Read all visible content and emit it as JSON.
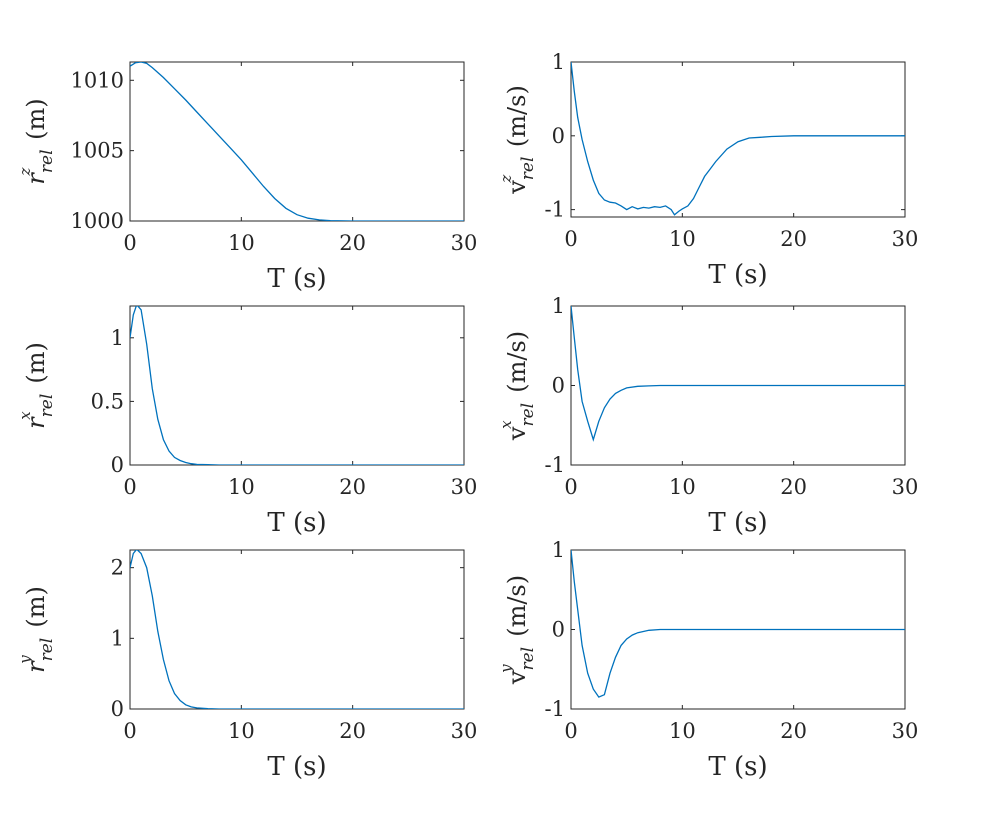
{
  "chart_data": [
    {
      "type": "line",
      "xlabel": "T (s)",
      "ylabel": {
        "symbol": "r",
        "superscript": "z",
        "subscript": "rel",
        "unit": "(m)"
      },
      "xlim": [
        0,
        30
      ],
      "ylim": [
        1000,
        1011.3
      ],
      "xticks": [
        0,
        10,
        20,
        30
      ],
      "yticks": [
        1000,
        1005,
        1010
      ],
      "ytick_labels": [
        "1000",
        "1005",
        "1010"
      ],
      "series": [
        {
          "color": "#0072BD",
          "x": [
            0,
            0.5,
            1,
            1.5,
            2,
            3,
            4,
            5,
            6,
            7,
            8,
            9,
            10,
            11,
            12,
            13,
            14,
            15,
            16,
            17,
            18,
            20,
            25,
            30
          ],
          "y": [
            1011.0,
            1011.25,
            1011.3,
            1011.2,
            1010.9,
            1010.2,
            1009.4,
            1008.6,
            1007.75,
            1006.9,
            1006.05,
            1005.2,
            1004.35,
            1003.4,
            1002.45,
            1001.6,
            1000.9,
            1000.45,
            1000.2,
            1000.08,
            1000.03,
            1000.0,
            1000.0,
            1000.0
          ]
        }
      ]
    },
    {
      "type": "line",
      "xlabel": "T (s)",
      "ylabel": {
        "symbol": "v",
        "superscript": "z",
        "subscript": "rel",
        "unit": "(m/s)"
      },
      "xlim": [
        0,
        30
      ],
      "ylim": [
        -1.1,
        1.0
      ],
      "xticks": [
        0,
        10,
        20,
        30
      ],
      "yticks": [
        -1,
        0,
        1
      ],
      "ytick_labels": [
        "-1",
        "0",
        "1"
      ],
      "series": [
        {
          "color": "#0072BD",
          "x": [
            0,
            0.3,
            0.6,
            1,
            1.5,
            2,
            2.5,
            3,
            3.5,
            4,
            4.5,
            5,
            5.5,
            6,
            6.5,
            7,
            7.5,
            8,
            8.5,
            9,
            9.3,
            9.7,
            10,
            10.5,
            11,
            11.5,
            12,
            12.5,
            13,
            14,
            15,
            16,
            17,
            18,
            20,
            22,
            25,
            28,
            30
          ],
          "y": [
            1.0,
            0.6,
            0.25,
            -0.05,
            -0.35,
            -0.6,
            -0.78,
            -0.87,
            -0.9,
            -0.91,
            -0.95,
            -1.0,
            -0.96,
            -0.99,
            -0.97,
            -0.98,
            -0.96,
            -0.97,
            -0.95,
            -1.0,
            -1.07,
            -1.02,
            -0.99,
            -0.95,
            -0.85,
            -0.7,
            -0.55,
            -0.45,
            -0.35,
            -0.18,
            -0.08,
            -0.03,
            -0.02,
            -0.01,
            0.0,
            0.0,
            0.0,
            0.0,
            0.0
          ]
        }
      ]
    },
    {
      "type": "line",
      "xlabel": "T (s)",
      "ylabel": {
        "symbol": "r",
        "superscript": "x",
        "subscript": "rel",
        "unit": "(m)"
      },
      "xlim": [
        0,
        30
      ],
      "ylim": [
        0,
        1.25
      ],
      "xticks": [
        0,
        10,
        20,
        30
      ],
      "yticks": [
        0,
        0.5,
        1
      ],
      "ytick_labels": [
        "0",
        "0.5",
        "1"
      ],
      "series": [
        {
          "color": "#0072BD",
          "x": [
            0,
            0.3,
            0.6,
            1,
            1.5,
            2,
            2.5,
            3,
            3.5,
            4,
            4.5,
            5,
            5.5,
            6,
            7,
            8,
            10,
            15,
            20,
            25,
            30
          ],
          "y": [
            1.0,
            1.18,
            1.26,
            1.22,
            0.95,
            0.6,
            0.36,
            0.2,
            0.11,
            0.06,
            0.035,
            0.02,
            0.01,
            0.005,
            0.002,
            0.0,
            0.0,
            0.0,
            0.0,
            0.0,
            0.0
          ]
        }
      ]
    },
    {
      "type": "line",
      "xlabel": "T (s)",
      "ylabel": {
        "symbol": "v",
        "superscript": "x",
        "subscript": "rel",
        "unit": "(m/s)"
      },
      "xlim": [
        0,
        30
      ],
      "ylim": [
        -1.0,
        1.0
      ],
      "xticks": [
        0,
        10,
        20,
        30
      ],
      "yticks": [
        -1,
        0,
        1
      ],
      "ytick_labels": [
        "-1",
        "0",
        "1"
      ],
      "series": [
        {
          "color": "#0072BD",
          "x": [
            0,
            0.3,
            0.6,
            1,
            1.5,
            2,
            2.5,
            3,
            3.5,
            4,
            4.5,
            5,
            6,
            7,
            8,
            10,
            15,
            20,
            25,
            30
          ],
          "y": [
            1.0,
            0.6,
            0.2,
            -0.2,
            -0.45,
            -0.68,
            -0.45,
            -0.28,
            -0.17,
            -0.1,
            -0.06,
            -0.03,
            -0.01,
            -0.005,
            0.0,
            0.0,
            0.0,
            0.0,
            0.0,
            0.0
          ]
        }
      ]
    },
    {
      "type": "line",
      "xlabel": "T (s)",
      "ylabel": {
        "symbol": "r",
        "superscript": "y",
        "subscript": "rel",
        "unit": "(m)"
      },
      "xlim": [
        0,
        30
      ],
      "ylim": [
        0,
        2.25
      ],
      "xticks": [
        0,
        10,
        20,
        30
      ],
      "yticks": [
        0,
        1,
        2
      ],
      "ytick_labels": [
        "0",
        "1",
        "2"
      ],
      "series": [
        {
          "color": "#0072BD",
          "x": [
            0,
            0.3,
            0.6,
            1,
            1.5,
            2,
            2.5,
            3,
            3.5,
            4,
            4.5,
            5,
            5.5,
            6,
            7,
            8,
            10,
            15,
            20,
            25,
            30
          ],
          "y": [
            2.0,
            2.2,
            2.26,
            2.2,
            2.0,
            1.6,
            1.1,
            0.7,
            0.4,
            0.22,
            0.12,
            0.06,
            0.03,
            0.015,
            0.005,
            0.0,
            0.0,
            0.0,
            0.0,
            0.0,
            0.0
          ]
        }
      ]
    },
    {
      "type": "line",
      "xlabel": "T (s)",
      "ylabel": {
        "symbol": "v",
        "superscript": "y",
        "subscript": "rel",
        "unit": "(m/s)"
      },
      "xlim": [
        0,
        30
      ],
      "ylim": [
        -1.0,
        1.0
      ],
      "xticks": [
        0,
        10,
        20,
        30
      ],
      "yticks": [
        -1,
        0,
        1
      ],
      "ytick_labels": [
        "-1",
        "0",
        "1"
      ],
      "series": [
        {
          "color": "#0072BD",
          "x": [
            0,
            0.3,
            0.6,
            1,
            1.5,
            2,
            2.5,
            3,
            3.5,
            4,
            4.5,
            5,
            5.5,
            6,
            7,
            8,
            10,
            15,
            20,
            25,
            30
          ],
          "y": [
            1.0,
            0.6,
            0.25,
            -0.2,
            -0.55,
            -0.75,
            -0.85,
            -0.82,
            -0.55,
            -0.35,
            -0.2,
            -0.12,
            -0.07,
            -0.04,
            -0.01,
            0.0,
            0.0,
            0.0,
            0.0,
            0.0,
            0.0
          ]
        }
      ]
    }
  ]
}
